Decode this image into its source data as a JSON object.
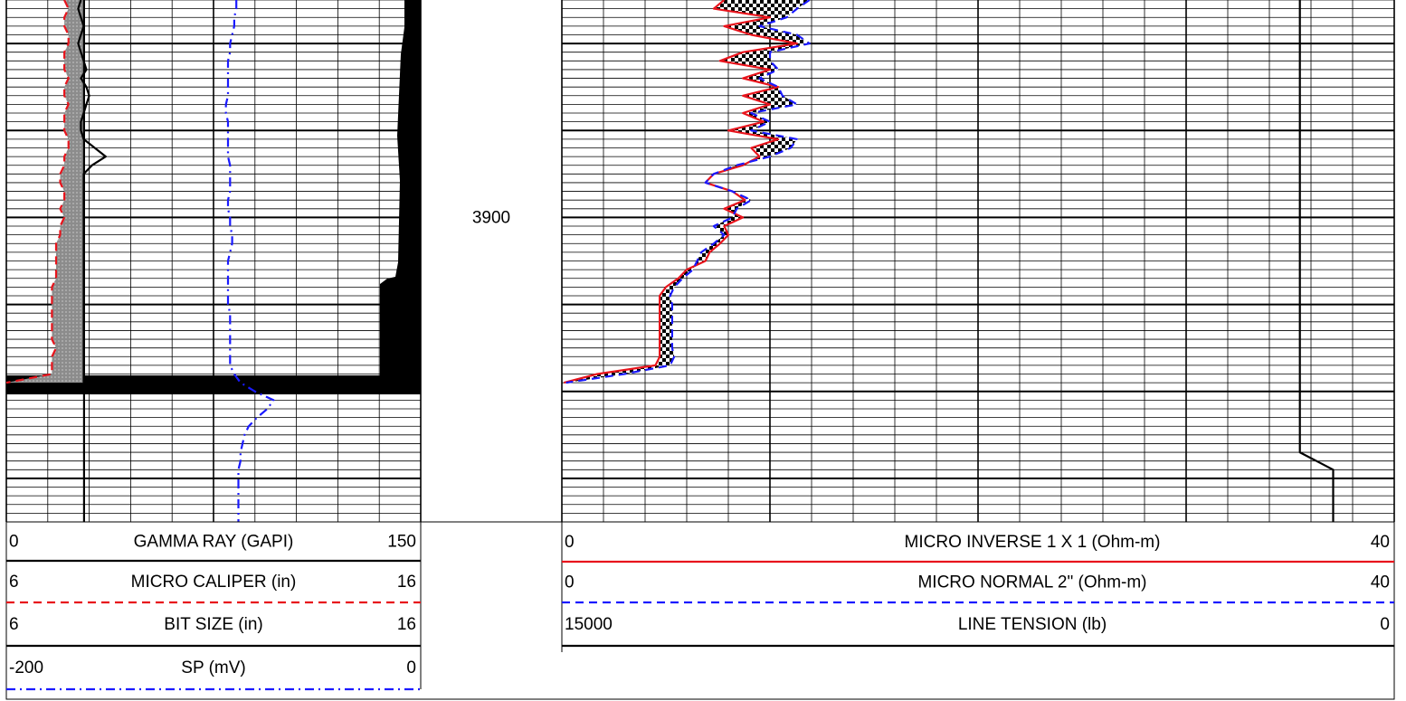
{
  "chart_data": {
    "type": "well-log",
    "ylim": [
      3875,
      3935
    ],
    "yticks": [
      3880,
      3890,
      3900,
      3910,
      3920,
      3930
    ],
    "depth_labels": [
      3900
    ],
    "depth": [
      3875,
      3876,
      3877,
      3878,
      3879,
      3880,
      3881,
      3882,
      3883,
      3884,
      3885,
      3886,
      3887,
      3888,
      3889,
      3890,
      3891,
      3892,
      3893,
      3894,
      3895,
      3896,
      3897,
      3898,
      3899,
      3900,
      3901,
      3902,
      3903,
      3904,
      3905,
      3906,
      3907,
      3908,
      3909,
      3910,
      3911,
      3912,
      3913,
      3914,
      3915,
      3916,
      3917,
      3918,
      3919,
      3920,
      3921,
      3922,
      3923,
      3924,
      3925,
      3926,
      3927,
      3928,
      3929,
      3930,
      3931,
      3932,
      3933,
      3934,
      3935
    ],
    "tracks": [
      {
        "grid_divisions": 10,
        "grid_major_every": 5,
        "fills": [
          {
            "between": [
              1,
              2
            ],
            "style": "gray"
          }
        ],
        "curves": [
          {
            "name": "GAMMA RAY (GAPI)",
            "color": "#000000",
            "dash": "solid",
            "xlim": [
              0,
              150
            ],
            "values": [
              27,
              26,
              27,
              28,
              27,
              26,
              27,
              28,
              29,
              27,
              29,
              30,
              29,
              28,
              27,
              27,
              28,
              32,
              36,
              31,
              28,
              28,
              28,
              28,
              28,
              28,
              28,
              28,
              28,
              28,
              28,
              28,
              28,
              28,
              28,
              28,
              28,
              28,
              28,
              28,
              28,
              28,
              28,
              28,
              28,
              null,
              null,
              null,
              null,
              null,
              null,
              null,
              null,
              null,
              null,
              null,
              null,
              null,
              null,
              null,
              null
            ]
          },
          {
            "name": "MICRO CALIPER (in)",
            "color": "#e8141c",
            "dash": "dashed",
            "xlim": [
              6,
              16
            ],
            "values": [
              7.4,
              7.5,
              7.4,
              7.4,
              7.5,
              7.5,
              7.4,
              7.4,
              7.4,
              7.5,
              7.4,
              7.4,
              7.5,
              7.4,
              7.4,
              7.4,
              7.5,
              7.5,
              7.4,
              7.4,
              7.3,
              7.3,
              7.4,
              7.4,
              7.3,
              7.4,
              7.3,
              7.3,
              7.2,
              7.2,
              7.2,
              7.2,
              7.2,
              7.1,
              7.1,
              7.1,
              7.1,
              7.1,
              7.1,
              7.1,
              7.2,
              7.1,
              7.1,
              7.1,
              6.0,
              null,
              null,
              null,
              null,
              null,
              null,
              null,
              null,
              null,
              null,
              null,
              null,
              null,
              null,
              null,
              null
            ]
          },
          {
            "name": "BIT SIZE (in)",
            "color": "#000000",
            "dash": "solid",
            "xlim": [
              6,
              16
            ],
            "values": [
              7.875,
              7.875,
              7.875,
              7.875,
              7.875,
              7.875,
              7.875,
              7.875,
              7.875,
              7.875,
              7.875,
              7.875,
              7.875,
              7.875,
              7.875,
              7.875,
              7.875,
              7.875,
              7.875,
              7.875,
              7.875,
              7.875,
              7.875,
              7.875,
              7.875,
              7.875,
              7.875,
              7.875,
              7.875,
              7.875,
              7.875,
              7.875,
              7.875,
              7.875,
              7.875,
              7.875,
              7.875,
              7.875,
              7.875,
              7.875,
              7.875,
              7.875,
              7.875,
              7.875,
              7.875,
              7.875,
              7.875,
              7.875,
              7.875,
              7.875,
              7.875,
              7.875,
              7.875,
              7.875,
              7.875,
              7.875,
              7.875,
              7.875,
              7.875,
              7.875,
              7.875
            ]
          },
          {
            "name": "SP (mV)",
            "color": "#1a1aff",
            "dash": "dash-dot",
            "xlim": [
              -200,
              0
            ],
            "values": [
              -89,
              -89,
              -90,
              -90,
              -91,
              -92,
              -92,
              -93,
              -93,
              -93,
              -93,
              -93,
              -94,
              -94,
              -93,
              -93,
              -93,
              -93,
              -93,
              -92,
              -92,
              -92,
              -92,
              -93,
              -93,
              -92,
              -92,
              -91,
              -91,
              -92,
              -93,
              -93,
              -93,
              -93,
              -93,
              -93,
              -92,
              -92,
              -92,
              -92,
              -92,
              -92,
              -92,
              -90,
              -87,
              -80,
              -71,
              -74,
              -79,
              -83,
              -85,
              -86,
              -87,
              -87,
              -88,
              -88,
              -88,
              -88,
              -88,
              -88,
              -88
            ]
          }
        ]
      },
      {
        "grid_divisions": 20,
        "grid_major_every": 5,
        "fills": [
          {
            "between": [
              0,
              1
            ],
            "style": "checker"
          }
        ],
        "curves": [
          {
            "name": "MICRO INVERSE 1 X 1 (Ohm-m)",
            "color": "#e8141c",
            "dash": "solid",
            "xlim": [
              0,
              40
            ],
            "values": [
              7.8,
              7.3,
              10,
              7.8,
              9.1,
              11.3,
              8.7,
              7.6,
              10,
              8.7,
              10.4,
              8.7,
              10,
              8.7,
              9.7,
              8,
              10.4,
              9.1,
              9.5,
              8.7,
              7.3,
              6.9,
              8.2,
              8.8,
              7.8,
              8.7,
              7.8,
              8,
              7.6,
              7.1,
              6.9,
              6,
              5.6,
              5,
              4.7,
              4.7,
              4.7,
              4.7,
              4.7,
              4.7,
              4.7,
              4.7,
              4.5,
              1.7,
              0.1,
              null,
              null,
              null,
              null,
              null,
              null,
              null,
              null,
              null,
              null,
              null,
              null,
              null,
              null,
              null,
              null
            ]
          },
          {
            "name": "MICRO NORMAL 2\" (Ohm-m)",
            "color": "#1a1aff",
            "dash": "dashed",
            "xlim": [
              0,
              40
            ],
            "values": [
              11.9,
              11.3,
              10.8,
              9.5,
              11.3,
              11.9,
              10,
              10,
              10.4,
              9.5,
              10.4,
              10.6,
              11.3,
              9.1,
              10,
              9.1,
              11.3,
              11,
              10,
              8.4,
              7.3,
              6.9,
              8.2,
              9.1,
              8.4,
              8.2,
              7.3,
              7.8,
              7.3,
              6.7,
              6.5,
              6.3,
              5.8,
              5.4,
              5.2,
              5.3,
              5.3,
              5.3,
              5.3,
              5.3,
              5.3,
              5.4,
              5.2,
              3,
              0.2,
              null,
              null,
              null,
              null,
              null,
              null,
              null,
              null,
              null,
              null,
              null,
              null,
              null,
              null,
              null,
              null
            ]
          },
          {
            "name": "LINE TENSION (lb)",
            "color": "#000000",
            "dash": "solid",
            "xlim": [
              15000,
              0
            ],
            "values": [
              1700,
              1700,
              1700,
              1700,
              1700,
              1700,
              1700,
              1700,
              1700,
              1700,
              1700,
              1700,
              1700,
              1700,
              1700,
              1700,
              1700,
              1700,
              1700,
              1700,
              1700,
              1700,
              1700,
              1700,
              1700,
              1700,
              1700,
              1700,
              1700,
              1700,
              1700,
              1700,
              1700,
              1700,
              1700,
              1700,
              1700,
              1700,
              1700,
              1700,
              1700,
              1700,
              1700,
              1700,
              1700,
              1700,
              1700,
              1700,
              1700,
              1700,
              1700,
              1700,
              1700,
              1400,
              1100,
              1100,
              1100,
              1100,
              1100,
              1100,
              1100
            ]
          }
        ]
      }
    ]
  }
}
